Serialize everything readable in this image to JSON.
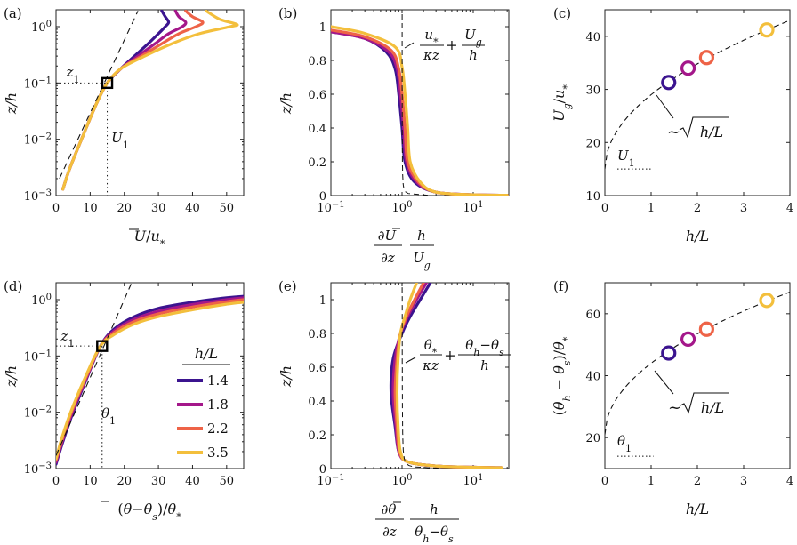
{
  "figure": {
    "legend": {
      "title": "h/L",
      "entries": [
        {
          "label": "1.4",
          "color": "#3b148f"
        },
        {
          "label": "1.8",
          "color": "#a4178a"
        },
        {
          "label": "2.2",
          "color": "#ee6347"
        },
        {
          "label": "3.5",
          "color": "#f3bf3c"
        }
      ]
    }
  },
  "chart_data": [
    {
      "panel": "(a)",
      "type": "line",
      "xlabel": "Ū/u*",
      "ylabel": "z/h",
      "xlim": [
        0,
        55
      ],
      "ylim_log10": [
        -3,
        0.3
      ],
      "xticks": [
        "0",
        "10",
        "20",
        "30",
        "40",
        "50"
      ],
      "yticks": [
        "10^-3",
        "10^-2",
        "10^-1",
        "10^0"
      ],
      "series": [
        {
          "name": "1.4",
          "x": [
            2,
            4,
            8,
            12,
            15,
            19,
            23,
            27,
            30,
            32,
            33,
            32,
            31
          ],
          "z": [
            0.0013,
            0.003,
            0.012,
            0.045,
            0.1,
            0.18,
            0.3,
            0.5,
            0.75,
            1.0,
            1.2,
            1.5,
            1.9
          ]
        },
        {
          "name": "1.8",
          "x": [
            2,
            4,
            8,
            12,
            15,
            19,
            24,
            29,
            33,
            37,
            38,
            36,
            35
          ],
          "z": [
            0.0013,
            0.003,
            0.012,
            0.045,
            0.1,
            0.18,
            0.3,
            0.5,
            0.75,
            1.0,
            1.2,
            1.5,
            1.9
          ]
        },
        {
          "name": "2.2",
          "x": [
            2,
            4,
            8,
            12,
            15,
            19,
            25,
            31,
            36,
            41,
            43,
            40,
            38
          ],
          "z": [
            0.0013,
            0.003,
            0.012,
            0.045,
            0.1,
            0.18,
            0.3,
            0.5,
            0.75,
            1.0,
            1.2,
            1.5,
            1.9
          ]
        },
        {
          "name": "3.5",
          "x": [
            2,
            4,
            8,
            12,
            15,
            19,
            26,
            34,
            42,
            51,
            53,
            48,
            44
          ],
          "z": [
            0.0013,
            0.003,
            0.012,
            0.045,
            0.1,
            0.18,
            0.3,
            0.5,
            0.75,
            1.0,
            1.1,
            1.35,
            1.9
          ]
        }
      ],
      "reference_line": {
        "x": [
          1,
          24
        ],
        "z": [
          0.002,
          1.9
        ]
      },
      "marker": {
        "x": 15,
        "z": 0.1
      },
      "annotations": [
        "z_1",
        "U_1"
      ]
    },
    {
      "panel": "(b)",
      "type": "line",
      "xlabel": "(∂Ū/∂z)(h/U_g)",
      "ylabel": "z/h",
      "xlim_log10": [
        -1,
        1.5
      ],
      "ylim": [
        0,
        1.1
      ],
      "xticks": [
        "10^-1",
        "10^0",
        "10^1"
      ],
      "yticks": [
        "0",
        "0.2",
        "0.4",
        "0.6",
        "0.8",
        "1"
      ],
      "series": [
        {
          "name": "1.4",
          "x": [
            0.1,
            0.3,
            0.6,
            0.8,
            0.9,
            1.0,
            1.1,
            1.5,
            3,
            10,
            30
          ],
          "z": [
            0.97,
            0.93,
            0.85,
            0.75,
            0.6,
            0.4,
            0.2,
            0.08,
            0.02,
            0.005,
            0.002
          ]
        },
        {
          "name": "1.8",
          "x": [
            0.1,
            0.3,
            0.65,
            0.85,
            0.95,
            1.05,
            1.15,
            1.6,
            3,
            10,
            30
          ],
          "z": [
            0.97,
            0.93,
            0.85,
            0.75,
            0.6,
            0.4,
            0.2,
            0.08,
            0.02,
            0.005,
            0.002
          ]
        },
        {
          "name": "2.2",
          "x": [
            0.1,
            0.3,
            0.7,
            0.9,
            1.0,
            1.1,
            1.2,
            1.7,
            3,
            10,
            30
          ],
          "z": [
            0.98,
            0.94,
            0.86,
            0.75,
            0.6,
            0.4,
            0.2,
            0.08,
            0.02,
            0.005,
            0.002
          ]
        },
        {
          "name": "3.5",
          "x": [
            0.1,
            0.3,
            0.8,
            1.0,
            1.1,
            1.2,
            1.3,
            1.8,
            3,
            10,
            30
          ],
          "z": [
            1.0,
            0.96,
            0.88,
            0.76,
            0.6,
            0.4,
            0.2,
            0.08,
            0.02,
            0.005,
            0.002
          ]
        }
      ],
      "reference_curve": "u*/(κz) + U_g/h",
      "annotations": [
        "u*/κz + U_g/h"
      ]
    },
    {
      "panel": "(c)",
      "type": "scatter",
      "xlabel": "h/L",
      "ylabel": "U_g/u*",
      "xlim": [
        0,
        4
      ],
      "ylim": [
        10,
        45
      ],
      "xticks": [
        "0",
        "1",
        "2",
        "3",
        "4"
      ],
      "yticks": [
        "10",
        "20",
        "30",
        "40"
      ],
      "points": [
        {
          "name": "1.4",
          "x": 1.38,
          "y": 31.3
        },
        {
          "name": "1.8",
          "x": 1.8,
          "y": 34.0
        },
        {
          "name": "2.2",
          "x": 2.2,
          "y": 36.0
        },
        {
          "name": "3.5",
          "x": 3.5,
          "y": 41.2
        }
      ],
      "fit": {
        "form": "a + b*sqrt(h/L)",
        "a": 15,
        "b": 14
      },
      "baseline": {
        "name": "U_1",
        "y": 15,
        "x": [
          0,
          1.0
        ]
      },
      "annotations": [
        "~√(h/L)",
        "U_1"
      ]
    },
    {
      "panel": "(d)",
      "type": "line",
      "xlabel": "(θ̄−θ_s)/θ*",
      "ylabel": "z/h",
      "xlim": [
        0,
        55
      ],
      "ylim_log10": [
        -3,
        0.3
      ],
      "xticks": [
        "0",
        "10",
        "20",
        "30",
        "40",
        "50"
      ],
      "yticks": [
        "10^-3",
        "10^-2",
        "10^-1",
        "10^0"
      ],
      "series": [
        {
          "name": "1.4",
          "x": [
            0,
            2,
            5,
            9,
            13,
            17,
            23,
            30,
            40,
            50,
            55
          ],
          "z": [
            0.0012,
            0.003,
            0.01,
            0.04,
            0.15,
            0.3,
            0.5,
            0.7,
            0.9,
            1.08,
            1.15
          ]
        },
        {
          "name": "1.8",
          "x": [
            0,
            2,
            5,
            9,
            13,
            17,
            23,
            30,
            40,
            50,
            55
          ],
          "z": [
            0.0013,
            0.0033,
            0.011,
            0.042,
            0.15,
            0.28,
            0.45,
            0.62,
            0.82,
            1.0,
            1.08
          ]
        },
        {
          "name": "2.2",
          "x": [
            0,
            2,
            5,
            9,
            13,
            17,
            23,
            30,
            40,
            50,
            55
          ],
          "z": [
            0.0014,
            0.0036,
            0.012,
            0.045,
            0.15,
            0.26,
            0.41,
            0.56,
            0.74,
            0.92,
            1.0
          ]
        },
        {
          "name": "3.5",
          "x": [
            0,
            2,
            5,
            9,
            13,
            17,
            23,
            30,
            40,
            50,
            55
          ],
          "z": [
            0.0015,
            0.004,
            0.013,
            0.048,
            0.15,
            0.24,
            0.37,
            0.5,
            0.66,
            0.83,
            0.9
          ]
        }
      ],
      "reference_line": {
        "x": [
          0,
          22
        ],
        "z": [
          0.0017,
          1.9
        ]
      },
      "marker": {
        "x": 13.5,
        "z": 0.15
      },
      "annotations": [
        "z_1",
        "θ_1"
      ]
    },
    {
      "panel": "(e)",
      "type": "line",
      "xlabel": "(∂θ̄/∂z)(h/(θ_h−θ_s))",
      "ylabel": "z/h",
      "xlim_log10": [
        -1,
        1.5
      ],
      "ylim": [
        0,
        1.1
      ],
      "xticks": [
        "10^-1",
        "10^0",
        "10^1"
      ],
      "yticks": [
        "0",
        "0.2",
        "0.4",
        "0.6",
        "0.8",
        "1"
      ],
      "series": [
        {
          "name": "1.4",
          "x": [
            2.5,
            1.8,
            1.3,
            1.0,
            0.75,
            0.7,
            0.8,
            0.9,
            1.2,
            3,
            10,
            25
          ],
          "z": [
            1.1,
            1.0,
            0.9,
            0.8,
            0.65,
            0.45,
            0.25,
            0.1,
            0.04,
            0.015,
            0.008,
            0.005
          ]
        },
        {
          "name": "1.8",
          "x": [
            2.2,
            1.6,
            1.2,
            0.95,
            0.8,
            0.75,
            0.82,
            0.9,
            1.2,
            3,
            10,
            25
          ],
          "z": [
            1.1,
            1.0,
            0.9,
            0.8,
            0.65,
            0.45,
            0.25,
            0.1,
            0.04,
            0.015,
            0.008,
            0.005
          ]
        },
        {
          "name": "2.2",
          "x": [
            2.0,
            1.5,
            1.15,
            0.95,
            0.85,
            0.8,
            0.85,
            0.92,
            1.2,
            3,
            10,
            25
          ],
          "z": [
            1.1,
            1.0,
            0.9,
            0.8,
            0.65,
            0.45,
            0.25,
            0.1,
            0.04,
            0.015,
            0.008,
            0.005
          ]
        },
        {
          "name": "3.5",
          "x": [
            1.6,
            1.3,
            1.1,
            0.95,
            0.88,
            0.85,
            0.88,
            0.95,
            1.2,
            3,
            10,
            25
          ],
          "z": [
            1.1,
            1.0,
            0.9,
            0.8,
            0.65,
            0.45,
            0.25,
            0.1,
            0.04,
            0.015,
            0.008,
            0.005
          ]
        }
      ],
      "reference_curve": "θ*/(κz) + (θ_h−θ_s)/h",
      "annotations": [
        "θ*/κz + (θ_h−θ_s)/h"
      ]
    },
    {
      "panel": "(f)",
      "type": "scatter",
      "xlabel": "h/L",
      "ylabel": "(θ_h−θ_s)/θ*",
      "xlim": [
        0,
        4
      ],
      "ylim": [
        10,
        70
      ],
      "xticks": [
        "0",
        "1",
        "2",
        "3",
        "4"
      ],
      "yticks": [
        "20",
        "40",
        "60"
      ],
      "points": [
        {
          "name": "1.4",
          "x": 1.38,
          "y": 47.3
        },
        {
          "name": "1.8",
          "x": 1.8,
          "y": 51.8
        },
        {
          "name": "2.2",
          "x": 2.2,
          "y": 55.0
        },
        {
          "name": "3.5",
          "x": 3.5,
          "y": 64.3
        }
      ],
      "fit": {
        "form": "a + b*sqrt(h/L)",
        "a": 21,
        "b": 23
      },
      "baseline": {
        "name": "θ_1",
        "y": 14,
        "x": [
          0,
          1.05
        ]
      },
      "annotations": [
        "~√(h/L)",
        "θ_1"
      ]
    }
  ]
}
